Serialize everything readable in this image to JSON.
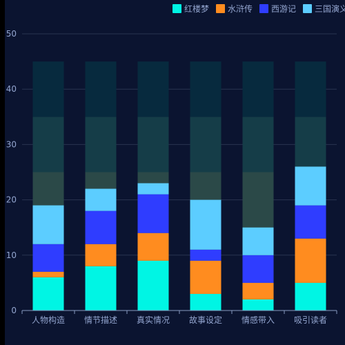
{
  "chart_data": {
    "type": "bar",
    "stacked": true,
    "categories": [
      "人物构造",
      "情节描述",
      "真实情况",
      "故事设定",
      "情感带入",
      "吸引读者"
    ],
    "series": [
      {
        "name": "红楼梦",
        "color": "#00f5e4",
        "values": [
          6,
          8,
          9,
          3,
          2,
          5
        ]
      },
      {
        "name": "水浒传",
        "color": "#ff8c1f",
        "values": [
          1,
          4,
          5,
          6,
          3,
          8
        ]
      },
      {
        "name": "西游记",
        "color": "#2f3dff",
        "values": [
          5,
          6,
          7,
          2,
          5,
          6
        ]
      },
      {
        "name": "三国演义",
        "color": "#5ccdff",
        "values": [
          7,
          4,
          2,
          9,
          5,
          7
        ]
      }
    ],
    "background_bands": [
      {
        "from": 0,
        "to": 25,
        "color": "#2b4948"
      },
      {
        "from": 25,
        "to": 35,
        "color": "#153d48"
      },
      {
        "from": 35,
        "to": 45,
        "color": "#072a3e"
      }
    ],
    "ylim": [
      0,
      50
    ],
    "yticks": [
      0,
      10,
      20,
      30,
      40,
      50
    ],
    "grid": true,
    "legend_position": "top-right",
    "axis_color": "#8a9cc2",
    "grid_color": "#2a3450",
    "label_color": "#93a5cf"
  }
}
